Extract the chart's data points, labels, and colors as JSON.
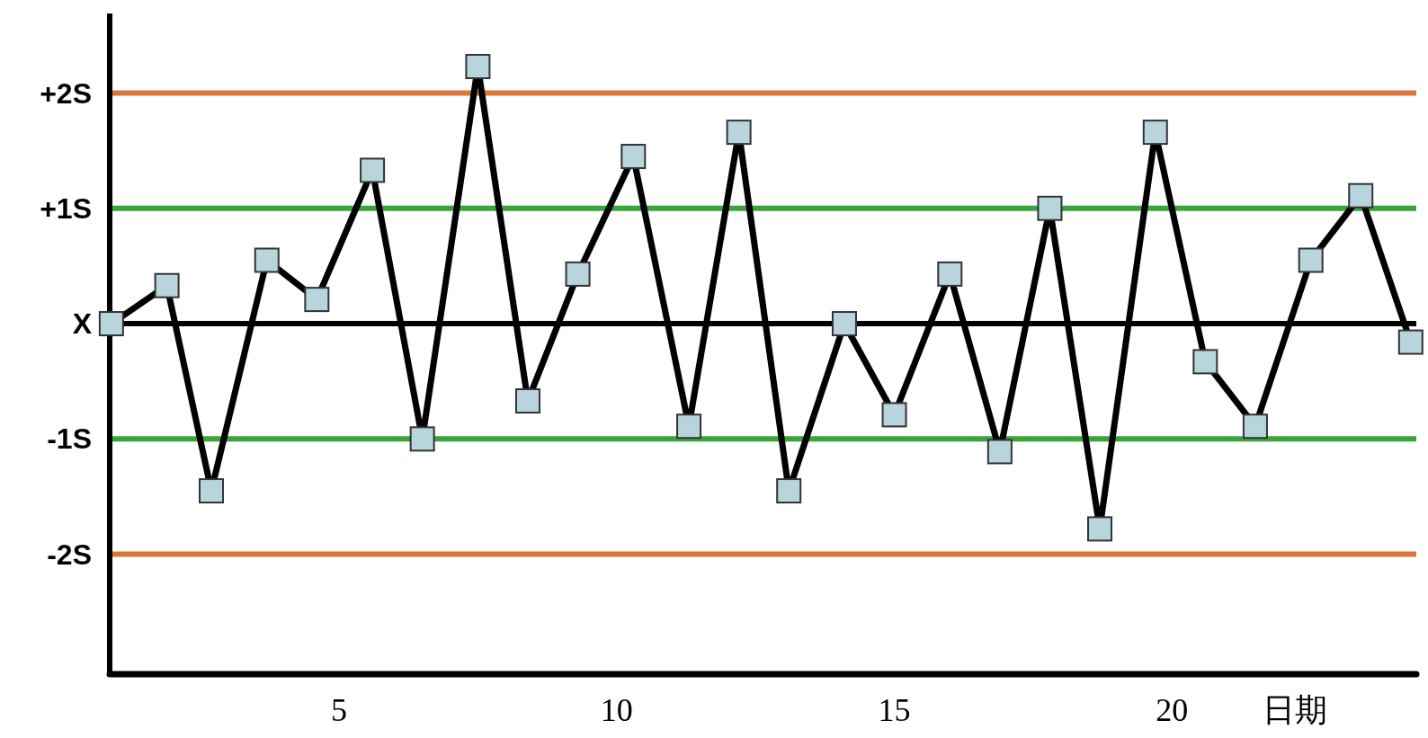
{
  "chart_data": {
    "type": "line",
    "xlabel": "日期",
    "x": [
      0.9,
      1.9,
      2.7,
      3.7,
      4.6,
      5.6,
      6.5,
      7.5,
      8.4,
      9.3,
      10.3,
      11.3,
      12.2,
      13.1,
      14.1,
      15.0,
      16.0,
      16.9,
      17.8,
      18.7,
      19.7,
      20.6,
      21.5,
      22.5,
      23.4,
      24.3
    ],
    "series": [
      {
        "color": "#000000",
        "values": [
          0,
          0.33,
          -1.45,
          0.55,
          0.21,
          1.33,
          -1.0,
          2.23,
          -0.67,
          0.43,
          1.45,
          -0.89,
          1.66,
          -1.45,
          0,
          -0.79,
          0.43,
          -1.11,
          1.0,
          -1.78,
          1.66,
          -0.33,
          -0.89,
          0.55,
          1.11,
          -0.16
        ]
      }
    ],
    "marker": "square",
    "grid": false,
    "xlim": [
      0.87,
      24.4
    ],
    "xticks": [
      5,
      10,
      15,
      20
    ],
    "ylim": [
      -3.04,
      2.69
    ],
    "yticks": [
      {
        "value": 2,
        "label": "+2S"
      },
      {
        "value": 1,
        "label": "+1S"
      },
      {
        "value": 0,
        "label": "X"
      },
      {
        "value": -1,
        "label": "-1S"
      },
      {
        "value": -2,
        "label": "-2S"
      }
    ],
    "ref_lines": [
      {
        "axis": "y",
        "value": 2,
        "color": "#d9773a"
      },
      {
        "axis": "y",
        "value": 1,
        "color": "#3aa53a"
      },
      {
        "axis": "y",
        "value": 0,
        "color": "#000000"
      },
      {
        "axis": "y",
        "value": -1,
        "color": "#3aa53a"
      },
      {
        "axis": "y",
        "value": -2,
        "color": "#d9773a"
      }
    ]
  }
}
